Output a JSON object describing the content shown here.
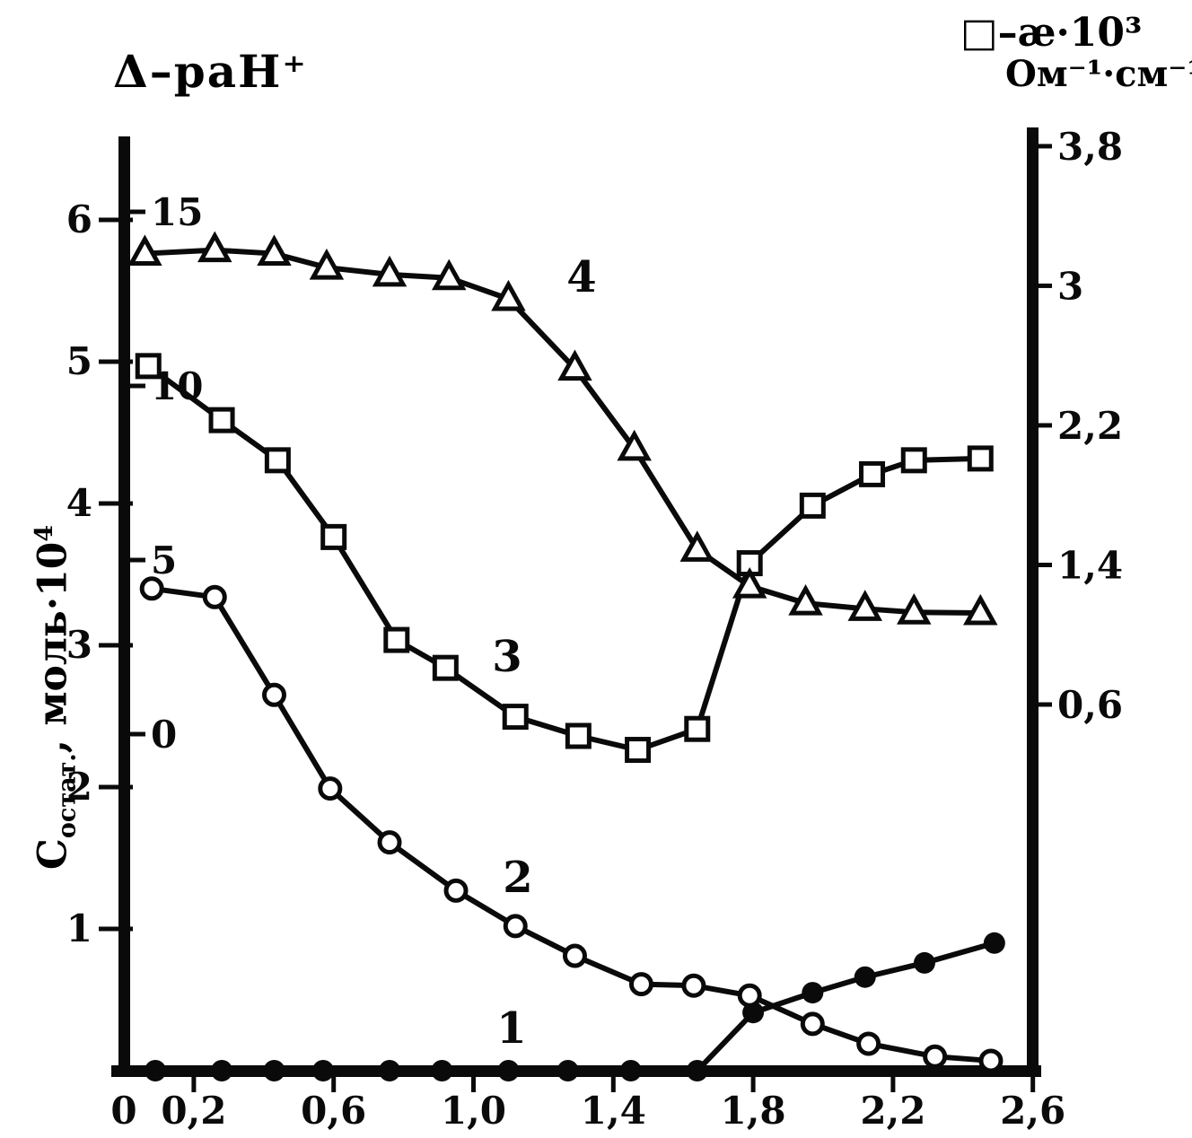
{
  "figure": {
    "y_axis_title": {
      "pre": "С",
      "sub": "остат.",
      "mid": ", моль·10",
      "sup": "4"
    }
  },
  "chart_data": {
    "type": "line",
    "title": "",
    "xlabel": "",
    "grid": false,
    "legend_position": "top",
    "legend": [
      {
        "symbol": "Δ",
        "text": "Δ–раН⁺"
      },
      {
        "symbol": "□",
        "text": "□–ӕ·10³",
        "text2": "Ом⁻¹·см⁻¹"
      }
    ],
    "x_axis": {
      "range": [
        0,
        2.6
      ],
      "ticks": [
        0,
        0.2,
        0.6,
        1.0,
        1.4,
        1.8,
        2.2,
        2.6
      ],
      "tick_labels": [
        "0",
        "0,2",
        "0,6",
        "1,0",
        "1,4",
        "1,8",
        "2,2",
        "2,6"
      ]
    },
    "left_outer_axis": {
      "title": "Состат., моль·10⁴",
      "range": [
        0,
        6.6
      ],
      "ticks": [
        1,
        2,
        3,
        4,
        5,
        6
      ],
      "tick_labels": [
        "1",
        "2",
        "3",
        "4",
        "5",
        "6"
      ]
    },
    "left_inner_axis": {
      "title": "раН⁺",
      "range": [
        0,
        15
      ],
      "ticks": [
        0,
        5,
        10,
        15
      ],
      "tick_labels": [
        "0",
        "5",
        "10",
        "15"
      ]
    },
    "right_axis": {
      "title": "ӕ·10³, Ом⁻¹·см⁻¹",
      "range": [
        -1.5,
        3.8
      ],
      "ticks": [
        0.6,
        1.4,
        2.2,
        3.0,
        3.8
      ],
      "tick_labels": [
        "0,6",
        "1,4",
        "2,2",
        "3",
        "3,8"
      ]
    },
    "series": [
      {
        "label": "1",
        "marker": "filled-circle",
        "scale": "left_outer",
        "x": [
          0.09,
          0.28,
          0.43,
          0.57,
          0.76,
          0.91,
          1.1,
          1.27,
          1.45,
          1.64,
          1.8,
          1.97,
          2.12,
          2.29,
          2.49
        ],
        "y": [
          0,
          0,
          0,
          0,
          0,
          0,
          0,
          0,
          0,
          0,
          0.41,
          0.55,
          0.66,
          0.76,
          0.9
        ]
      },
      {
        "label": "2",
        "marker": "open-circle",
        "scale": "left_outer",
        "x": [
          0.08,
          0.26,
          0.43,
          0.59,
          0.76,
          0.95,
          1.12,
          1.29,
          1.48,
          1.63,
          1.79,
          1.97,
          2.13,
          2.32,
          2.48
        ],
        "y": [
          3.4,
          3.34,
          2.65,
          1.99,
          1.61,
          1.27,
          1.02,
          0.81,
          0.61,
          0.6,
          0.53,
          0.33,
          0.19,
          0.1,
          0.07
        ]
      },
      {
        "label": "3",
        "marker": "open-square",
        "scale": "right",
        "x": [
          0.07,
          0.28,
          0.44,
          0.6,
          0.78,
          0.92,
          1.12,
          1.3,
          1.47,
          1.64,
          1.79,
          1.97,
          2.14,
          2.26,
          2.45
        ],
        "y": [
          2.54,
          2.23,
          2.0,
          1.56,
          0.97,
          0.81,
          0.53,
          0.42,
          0.34,
          0.46,
          1.41,
          1.74,
          1.92,
          2.0,
          2.01
        ]
      },
      {
        "label": "4",
        "marker": "open-triangle",
        "scale": "left_inner",
        "x": [
          0.06,
          0.26,
          0.43,
          0.58,
          0.76,
          0.93,
          1.1,
          1.29,
          1.46,
          1.64,
          1.79,
          1.95,
          2.12,
          2.26,
          2.45
        ],
        "y": [
          13.8,
          13.9,
          13.8,
          13.4,
          13.2,
          13.1,
          12.5,
          10.5,
          8.2,
          5.3,
          4.25,
          3.76,
          3.6,
          3.5,
          3.48
        ]
      }
    ]
  }
}
